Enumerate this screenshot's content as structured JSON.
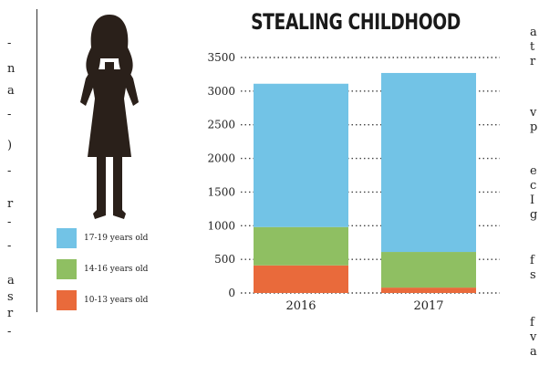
{
  "left_column_fragments": [
    "-",
    "n",
    "a",
    "-",
    ")",
    "-",
    "r",
    "-",
    "-",
    "a",
    "s",
    "r",
    "-"
  ],
  "right_column_fragments": [
    "a",
    "t",
    "r",
    "v",
    "p",
    "e",
    "c",
    "I",
    "g",
    "f",
    "s",
    "f",
    "v",
    "a"
  ],
  "silhouette": "girl-silhouette",
  "chart_data": {
    "type": "bar",
    "stacked": true,
    "title": "STEALING CHILDHOOD",
    "categories": [
      "2016",
      "2017"
    ],
    "series": [
      {
        "name": "10-13 years old",
        "color": "#e96a3b",
        "values": [
          410,
          80
        ]
      },
      {
        "name": "14-16 years old",
        "color": "#8fbf62",
        "values": [
          570,
          530
        ]
      },
      {
        "name": "17-19 years old",
        "color": "#72c3e6",
        "values": [
          2130,
          2660
        ]
      }
    ],
    "legend_order": [
      "17-19 years old",
      "14-16 years old",
      "10-13 years old"
    ],
    "legend_labels": [
      "17-19 years old",
      "14-16 years old",
      "10-13 years old"
    ],
    "yticks": [
      "0",
      "500",
      "1000",
      "1500",
      "2000",
      "2500",
      "3000",
      "3500"
    ],
    "ylim": [
      0,
      3500
    ],
    "grid": "dotted",
    "legend_position": "left"
  }
}
